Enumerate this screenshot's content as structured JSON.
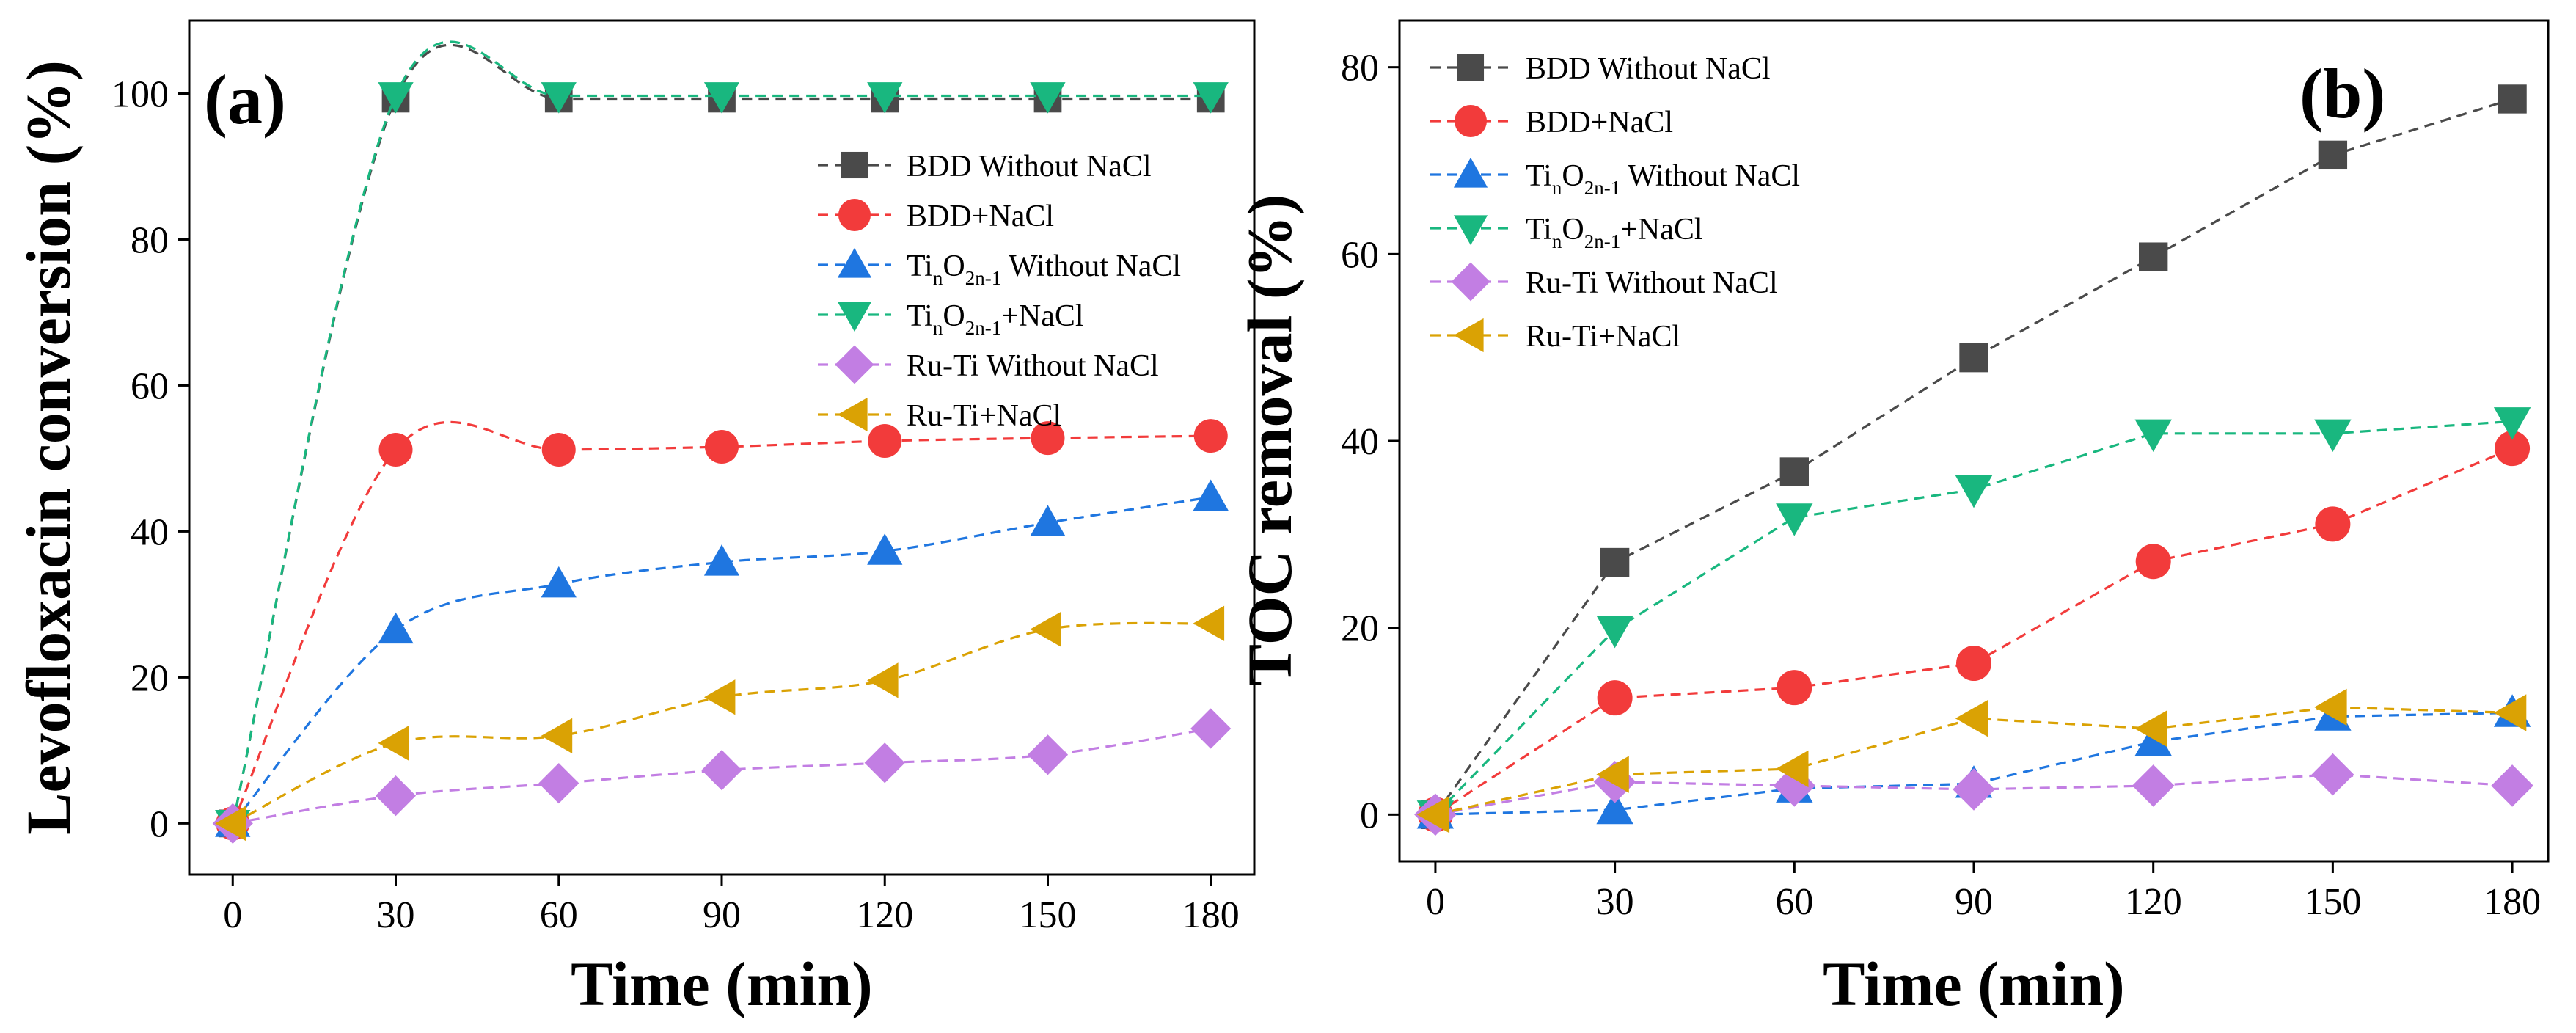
{
  "chart_data": [
    {
      "type": "line",
      "panel_label": "(a)",
      "xlabel": "Time (min)",
      "ylabel": "Levofloxacin conversion (%)",
      "xlim": [
        -8,
        188
      ],
      "ylim": [
        -7,
        110
      ],
      "x_ticks": [
        0,
        30,
        60,
        90,
        120,
        150,
        180
      ],
      "y_ticks": [
        0,
        20,
        40,
        60,
        80,
        100
      ],
      "legend_position": "right",
      "x": [
        0,
        30,
        60,
        90,
        120,
        150,
        180
      ],
      "series": [
        {
          "name": "BDD Without NaCl",
          "marker": "square",
          "color": "#4a4a4a",
          "values": [
            0,
            99.3,
            99.3,
            99.3,
            99.3,
            99.3,
            99.3
          ]
        },
        {
          "name": "BDD+NaCl",
          "marker": "circle",
          "color": "#f23b3b",
          "values": [
            0,
            51.2,
            51.2,
            51.6,
            52.4,
            52.8,
            53.1
          ]
        },
        {
          "name": "TinO2n-1 Without NaCl",
          "label_parts": {
            "base": "Ti",
            "sub1": "n",
            "mid": "O",
            "sub2": "2n-1",
            "tail": " Without NaCl"
          },
          "marker": "triangle-up",
          "color": "#1f76e0",
          "values": [
            0,
            26.5,
            32.8,
            35.8,
            37.3,
            41.2,
            44.7
          ]
        },
        {
          "name": "TinO2n-1+NaCl",
          "label_parts": {
            "base": "Ti",
            "sub1": "n",
            "mid": "O",
            "sub2": "2n-1",
            "tail": "+NaCl"
          },
          "marker": "triangle-down",
          "color": "#19b77f",
          "values": [
            0,
            99.7,
            99.7,
            99.7,
            99.7,
            99.7,
            99.7
          ]
        },
        {
          "name": "Ru-Ti Without NaCl",
          "marker": "diamond",
          "color": "#c27ee3",
          "values": [
            0,
            3.8,
            5.5,
            7.3,
            8.3,
            9.4,
            13.0
          ]
        },
        {
          "name": "Ru-Ti+NaCl",
          "marker": "triangle-left",
          "color": "#daa204",
          "values": [
            0,
            11.0,
            12.0,
            17.3,
            19.6,
            26.6,
            27.4
          ]
        }
      ]
    },
    {
      "type": "line",
      "panel_label": "(b)",
      "xlabel": "Time (min)",
      "ylabel": "TOC removal (%)",
      "xlim": [
        -6,
        186
      ],
      "ylim": [
        -5,
        85
      ],
      "x_ticks": [
        0,
        30,
        60,
        90,
        120,
        150,
        180
      ],
      "y_ticks": [
        0,
        20,
        40,
        60,
        80
      ],
      "legend_position": "top-left",
      "x": [
        0,
        30,
        60,
        90,
        120,
        150,
        180
      ],
      "series": [
        {
          "name": "BDD Without NaCl",
          "marker": "square",
          "color": "#4a4a4a",
          "values": [
            0,
            27.0,
            36.7,
            48.9,
            59.7,
            70.6,
            76.6
          ]
        },
        {
          "name": "BDD+NaCl",
          "marker": "circle",
          "color": "#f23b3b",
          "values": [
            0,
            12.5,
            13.6,
            16.2,
            27.1,
            31.1,
            39.2
          ]
        },
        {
          "name": "TinO2n-1 Without NaCl",
          "label_parts": {
            "base": "Ti",
            "sub1": "n",
            "mid": "O",
            "sub2": "2n-1",
            "tail": " Without NaCl"
          },
          "marker": "triangle-up",
          "color": "#1f76e0",
          "values": [
            0,
            0.5,
            2.8,
            3.3,
            7.8,
            10.5,
            10.9
          ]
        },
        {
          "name": "TinO2n-1+NaCl",
          "label_parts": {
            "base": "Ti",
            "sub1": "n",
            "mid": "O",
            "sub2": "2n-1",
            "tail": "+NaCl"
          },
          "marker": "triangle-down",
          "color": "#19b77f",
          "values": [
            0,
            19.8,
            31.8,
            34.8,
            40.8,
            40.8,
            42.1
          ]
        },
        {
          "name": "Ru-Ti Without NaCl",
          "marker": "diamond",
          "color": "#c27ee3",
          "values": [
            0,
            3.5,
            3.1,
            2.7,
            3.1,
            4.3,
            3.1
          ]
        },
        {
          "name": "Ru-Ti+NaCl",
          "marker": "triangle-left",
          "color": "#daa204",
          "values": [
            0,
            4.3,
            4.9,
            10.3,
            9.2,
            11.5,
            10.9
          ]
        }
      ]
    }
  ]
}
